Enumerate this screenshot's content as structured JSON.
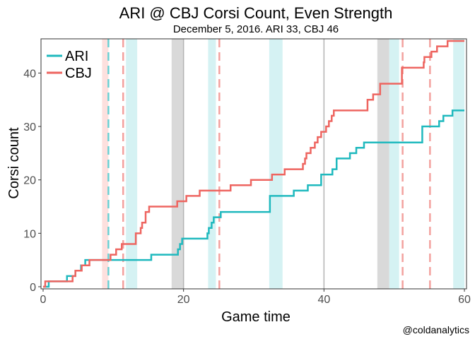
{
  "chart_data": {
    "type": "line",
    "title": "ARI @ CBJ Corsi Count, Even Strength",
    "subtitle": "December 5, 2016. ARI 33, CBJ 46",
    "xlabel": "Game time",
    "ylabel": "Corsi count",
    "xlim": [
      0,
      60
    ],
    "ylim": [
      0,
      46
    ],
    "x_ticks": [
      0,
      20,
      40,
      60
    ],
    "y_ticks": [
      0,
      10,
      20,
      30,
      40
    ],
    "grid": false,
    "legend": {
      "placement": "top-left",
      "entries": [
        "ARI",
        "CBJ"
      ]
    },
    "credit": "@coldanalytics",
    "colors": {
      "ARI": "#1fb9be",
      "CBJ": "#ee6560"
    },
    "series": [
      {
        "name": "ARI",
        "color": "#1fb9be",
        "steps": [
          [
            0.0,
            0
          ],
          [
            0.8,
            1
          ],
          [
            3.4,
            2
          ],
          [
            4.6,
            3
          ],
          [
            5.4,
            4
          ],
          [
            6.0,
            5
          ],
          [
            15.4,
            6
          ],
          [
            19.2,
            7
          ],
          [
            19.5,
            8
          ],
          [
            19.8,
            9
          ],
          [
            23.4,
            10
          ],
          [
            23.6,
            11
          ],
          [
            24.0,
            12
          ],
          [
            24.3,
            13
          ],
          [
            25.3,
            14
          ],
          [
            32.3,
            17
          ],
          [
            35.7,
            18
          ],
          [
            37.7,
            19
          ],
          [
            39.6,
            21
          ],
          [
            41.2,
            22
          ],
          [
            41.8,
            24
          ],
          [
            43.7,
            25
          ],
          [
            44.6,
            26
          ],
          [
            45.7,
            27
          ],
          [
            54.0,
            30
          ],
          [
            56.4,
            31
          ],
          [
            57.0,
            32
          ],
          [
            58.3,
            33
          ],
          [
            60.0,
            33
          ]
        ]
      },
      {
        "name": "CBJ",
        "color": "#ee6560",
        "steps": [
          [
            0.0,
            0
          ],
          [
            0.3,
            1
          ],
          [
            4.2,
            2
          ],
          [
            4.6,
            3
          ],
          [
            5.5,
            4
          ],
          [
            6.6,
            5
          ],
          [
            9.6,
            6
          ],
          [
            10.4,
            7
          ],
          [
            11.2,
            8
          ],
          [
            13.2,
            10
          ],
          [
            13.9,
            11
          ],
          [
            14.1,
            12
          ],
          [
            14.6,
            14
          ],
          [
            15.1,
            15
          ],
          [
            19.1,
            16
          ],
          [
            20.4,
            17
          ],
          [
            22.3,
            18
          ],
          [
            26.7,
            19
          ],
          [
            29.6,
            20
          ],
          [
            32.6,
            21
          ],
          [
            34.4,
            22
          ],
          [
            37.0,
            23
          ],
          [
            37.3,
            24
          ],
          [
            37.5,
            25
          ],
          [
            38.1,
            26
          ],
          [
            38.7,
            27
          ],
          [
            39.1,
            28
          ],
          [
            39.6,
            29
          ],
          [
            40.3,
            30
          ],
          [
            40.7,
            31
          ],
          [
            41.1,
            32
          ],
          [
            41.4,
            33
          ],
          [
            46.2,
            35
          ],
          [
            47.0,
            36
          ],
          [
            48.0,
            38
          ],
          [
            51.1,
            41
          ],
          [
            54.2,
            42
          ],
          [
            54.3,
            43
          ],
          [
            55.3,
            44
          ],
          [
            56.1,
            45
          ],
          [
            57.6,
            46
          ],
          [
            60.0,
            46
          ]
        ]
      }
    ],
    "bands": [
      {
        "team": "CBJ",
        "x0": 8.4,
        "x1": 9.3
      },
      {
        "team": "ARI",
        "x0": 11.8,
        "x1": 13.4
      },
      {
        "team": "neutral",
        "x0": 18.3,
        "x1": 20.0
      },
      {
        "team": "ARI",
        "x0": 23.5,
        "x1": 24.6
      },
      {
        "team": "ARI",
        "x0": 32.2,
        "x1": 34.1
      },
      {
        "team": "neutral",
        "x0": 47.6,
        "x1": 49.3
      },
      {
        "team": "ARI",
        "x0": 49.3,
        "x1": 50.7
      },
      {
        "team": "ARI",
        "x0": 58.4,
        "x1": 60.0
      }
    ],
    "goal_lines": [
      {
        "team": "ARI",
        "x": 9.3
      },
      {
        "team": "CBJ",
        "x": 11.4
      },
      {
        "team": "CBJ",
        "x": 25.1
      },
      {
        "team": "CBJ",
        "x": 51.2
      },
      {
        "team": "CBJ",
        "x": 55.1
      }
    ],
    "period_lines": [
      20,
      40
    ]
  }
}
